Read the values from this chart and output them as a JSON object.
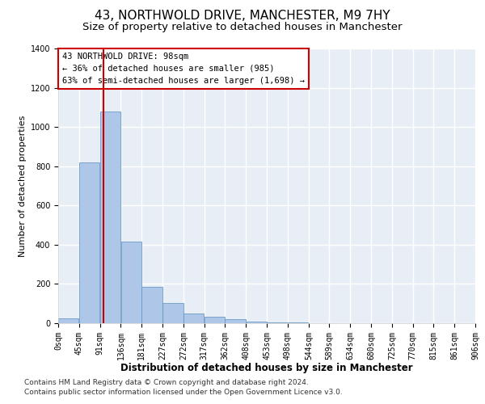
{
  "title": "43, NORTHWOLD DRIVE, MANCHESTER, M9 7HY",
  "subtitle": "Size of property relative to detached houses in Manchester",
  "xlabel": "Distribution of detached houses by size in Manchester",
  "ylabel": "Number of detached properties",
  "footnote1": "Contains HM Land Registry data © Crown copyright and database right 2024.",
  "footnote2": "Contains public sector information licensed under the Open Government Licence v3.0.",
  "annotation_lines": [
    "43 NORTHWOLD DRIVE: 98sqm",
    "← 36% of detached houses are smaller (985)",
    "63% of semi-detached houses are larger (1,698) →"
  ],
  "bin_edges": [
    0,
    45,
    91,
    136,
    181,
    227,
    272,
    317,
    362,
    408,
    453,
    498,
    544,
    589,
    634,
    680,
    725,
    770,
    815,
    861,
    906
  ],
  "bar_heights": [
    25,
    820,
    1080,
    415,
    185,
    105,
    50,
    35,
    20,
    10,
    5,
    5,
    2,
    1,
    1,
    1,
    0,
    0,
    0,
    0
  ],
  "bar_color": "#aec6e8",
  "bar_edge_color": "#5a8fc0",
  "red_line_x": 98,
  "red_line_color": "#cc0000",
  "annotation_box_color": "#cc0000",
  "ylim": [
    0,
    1400
  ],
  "yticks": [
    0,
    200,
    400,
    600,
    800,
    1000,
    1200,
    1400
  ],
  "background_color": "#e8eef5",
  "grid_color": "#ffffff",
  "title_fontsize": 11,
  "subtitle_fontsize": 9.5,
  "xlabel_fontsize": 8.5,
  "ylabel_fontsize": 8,
  "tick_fontsize": 7,
  "annotation_fontsize": 7.5,
  "footnote_fontsize": 6.5
}
